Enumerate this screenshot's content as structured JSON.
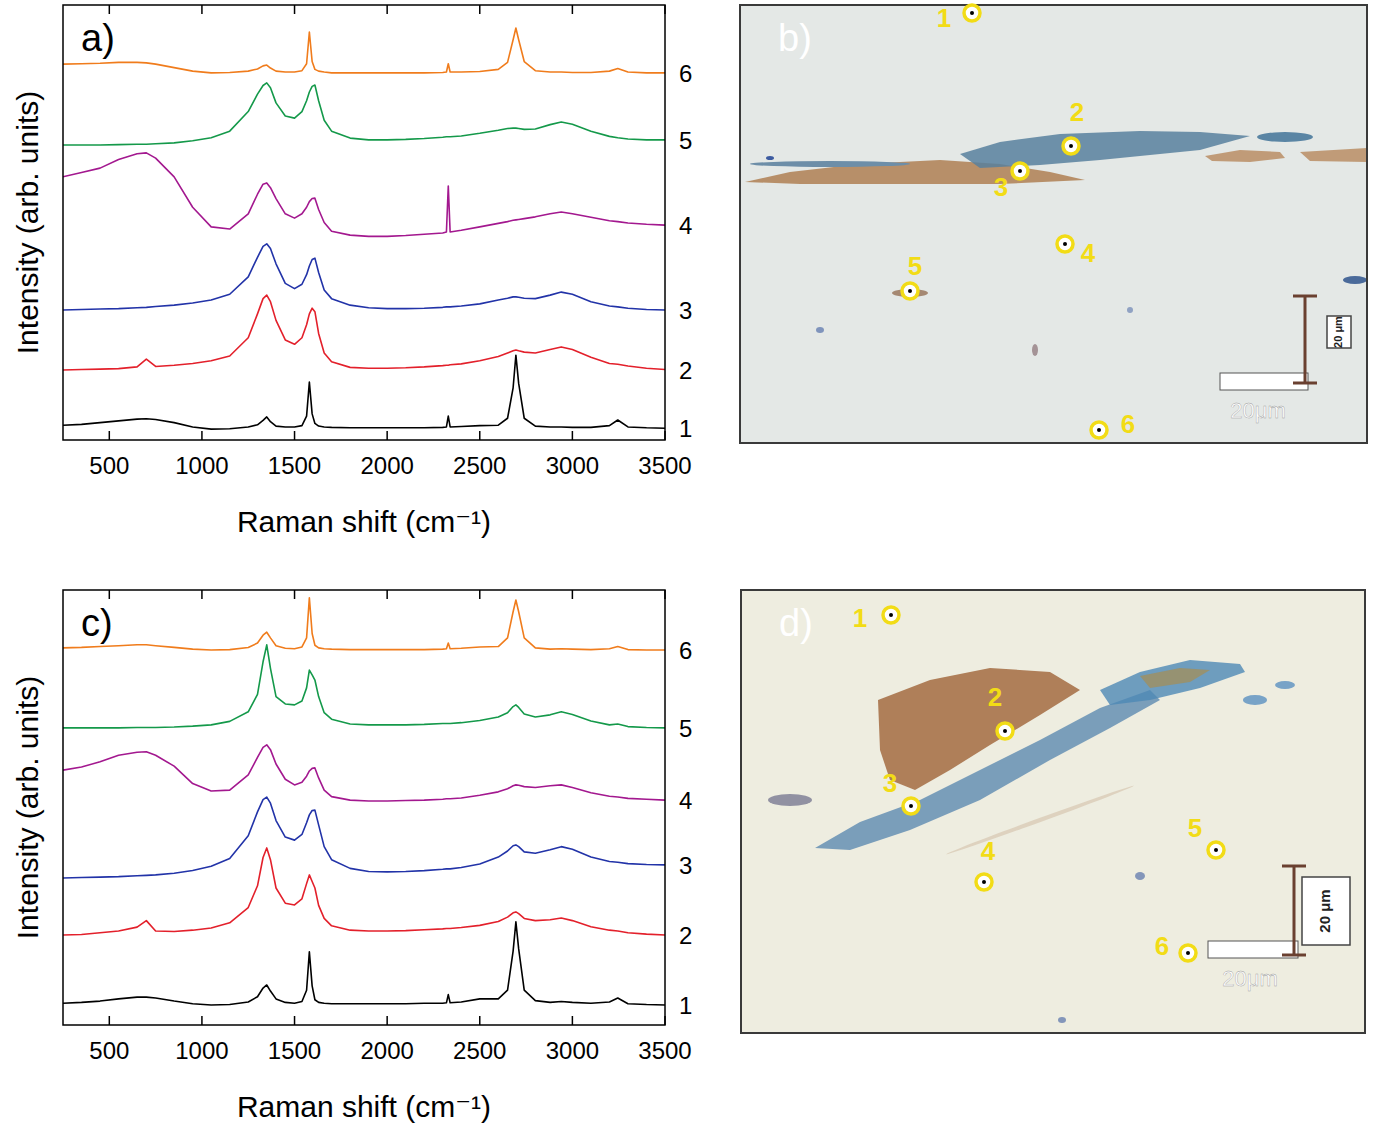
{
  "chart_data": [
    {
      "type": "line",
      "panel_label": "a)",
      "x_label": "Raman shift (cm⁻¹)",
      "y_label": "Intensity (arb. units)",
      "xlim": [
        250,
        3500
      ],
      "xticks": [
        500,
        1000,
        1500,
        2000,
        2500,
        3000,
        3500
      ],
      "ylim": [
        0,
        100
      ],
      "tick_labels": "x",
      "x": [
        250,
        350,
        450,
        550,
        650,
        700,
        750,
        850,
        950,
        1050,
        1150,
        1250,
        1300,
        1330,
        1350,
        1370,
        1400,
        1450,
        1500,
        1540,
        1565,
        1580,
        1595,
        1610,
        1630,
        1660,
        1700,
        1800,
        1900,
        2000,
        2100,
        2200,
        2300,
        2320,
        2330,
        2340,
        2400,
        2500,
        2600,
        2650,
        2680,
        2695,
        2710,
        2740,
        2800,
        2880,
        2940,
        3000,
        3100,
        3200,
        3245,
        3300,
        3400,
        3500
      ],
      "series": [
        {
          "name": "1",
          "color": "#000000",
          "values": [
            3.4,
            3.6,
            4.0,
            4.4,
            4.8,
            4.9,
            4.7,
            4.0,
            3.0,
            2.5,
            2.6,
            3.0,
            3.5,
            4.5,
            5.3,
            4.2,
            3.2,
            3.0,
            3.0,
            3.3,
            5.5,
            13.3,
            6.0,
            3.8,
            3.2,
            3.0,
            2.9,
            2.8,
            2.8,
            2.8,
            2.8,
            2.8,
            2.9,
            3.0,
            5.5,
            3.0,
            3.1,
            3.3,
            3.4,
            5.0,
            12.0,
            19.5,
            13.0,
            5.0,
            3.2,
            3.0,
            3.0,
            2.9,
            2.9,
            3.3,
            4.6,
            3.0,
            2.8,
            2.7
          ]
        },
        {
          "name": "2",
          "color": "#e3202b",
          "values": [
            16.1,
            16.2,
            16.3,
            16.4,
            16.8,
            18.6,
            16.9,
            17.2,
            17.6,
            18.2,
            19.3,
            23.5,
            29.0,
            32.5,
            33.3,
            31.8,
            27.5,
            23.0,
            22.0,
            23.5,
            26.5,
            29.0,
            30.3,
            29.5,
            24.5,
            20.0,
            18.0,
            16.7,
            16.5,
            16.5,
            16.6,
            16.8,
            17.1,
            17.2,
            17.2,
            17.3,
            17.5,
            18.2,
            19.2,
            20.0,
            20.5,
            20.7,
            20.5,
            20.2,
            20.0,
            20.8,
            21.4,
            20.8,
            19.0,
            17.6,
            17.4,
            17.0,
            16.5,
            16.2
          ]
        },
        {
          "name": "3",
          "color": "#2233a8",
          "values": [
            29.9,
            30.0,
            30.1,
            30.2,
            30.4,
            30.5,
            30.7,
            31.0,
            31.5,
            32.2,
            33.5,
            37.5,
            42.0,
            44.5,
            45.1,
            44.0,
            40.5,
            36.0,
            34.8,
            35.8,
            38.0,
            40.0,
            41.5,
            41.8,
            38.5,
            34.5,
            32.5,
            31.0,
            30.4,
            30.2,
            30.2,
            30.3,
            30.5,
            30.6,
            30.6,
            30.6,
            30.8,
            31.3,
            32.2,
            32.6,
            32.9,
            32.9,
            32.8,
            32.6,
            32.5,
            33.3,
            34.0,
            33.5,
            31.8,
            30.8,
            30.6,
            30.3,
            30.0,
            29.9
          ]
        },
        {
          "name": "4",
          "color": "#a3188f",
          "values": [
            60.5,
            61.5,
            62.5,
            64.5,
            65.8,
            66.0,
            64.8,
            60.5,
            53.5,
            49.0,
            48.5,
            52.0,
            56.5,
            58.8,
            59.1,
            58.0,
            55.5,
            52.0,
            51.0,
            52.0,
            53.5,
            54.8,
            55.5,
            55.6,
            53.0,
            50.0,
            48.0,
            47.1,
            46.8,
            46.8,
            47.0,
            47.3,
            47.6,
            47.8,
            58.4,
            47.8,
            48.2,
            49.0,
            49.8,
            50.2,
            50.5,
            50.6,
            50.7,
            50.9,
            51.3,
            52.0,
            52.4,
            52.0,
            51.2,
            50.4,
            50.2,
            49.9,
            49.6,
            49.4
          ]
        },
        {
          "name": "5",
          "color": "#14994a",
          "values": [
            67.8,
            67.8,
            67.8,
            67.9,
            68.0,
            68.0,
            68.1,
            68.3,
            68.8,
            69.5,
            71.0,
            75.5,
            79.5,
            81.5,
            82.1,
            81.0,
            77.5,
            74.5,
            74.0,
            75.5,
            78.0,
            80.0,
            81.3,
            81.6,
            78.0,
            73.5,
            71.0,
            69.4,
            69.0,
            69.0,
            69.1,
            69.3,
            69.6,
            69.7,
            69.7,
            69.7,
            69.9,
            70.5,
            71.2,
            71.6,
            71.7,
            71.7,
            71.6,
            71.4,
            71.5,
            72.5,
            73.1,
            72.6,
            71.0,
            69.8,
            69.5,
            69.2,
            69.0,
            69.0
          ]
        },
        {
          "name": "6",
          "color": "#f07c1c",
          "values": [
            86.4,
            86.5,
            86.6,
            86.8,
            86.8,
            86.7,
            86.4,
            85.6,
            84.8,
            84.4,
            84.5,
            84.8,
            85.3,
            86.0,
            86.2,
            85.5,
            84.8,
            84.6,
            84.6,
            84.9,
            86.5,
            93.8,
            87.0,
            85.2,
            84.8,
            84.6,
            84.4,
            84.4,
            84.4,
            84.4,
            84.4,
            84.4,
            84.5,
            84.6,
            86.5,
            84.6,
            84.6,
            84.7,
            85.2,
            86.8,
            92.0,
            94.7,
            92.0,
            87.0,
            84.9,
            84.6,
            84.6,
            84.5,
            84.5,
            84.8,
            85.4,
            84.6,
            84.4,
            84.4
          ]
        }
      ]
    },
    {
      "type": "line",
      "panel_label": "c)",
      "x_label": "Raman shift (cm⁻¹)",
      "y_label": "Intensity (arb. units)",
      "xlim": [
        250,
        3500
      ],
      "xticks": [
        500,
        1000,
        1500,
        2000,
        2500,
        3000,
        3500
      ],
      "ylim": [
        0,
        100
      ],
      "tick_labels": "x",
      "x": [
        250,
        350,
        450,
        550,
        650,
        700,
        750,
        850,
        950,
        1050,
        1150,
        1250,
        1300,
        1330,
        1350,
        1370,
        1400,
        1450,
        1500,
        1540,
        1565,
        1580,
        1595,
        1610,
        1630,
        1660,
        1700,
        1800,
        1900,
        2000,
        2100,
        2200,
        2300,
        2320,
        2330,
        2340,
        2400,
        2500,
        2600,
        2650,
        2680,
        2695,
        2710,
        2740,
        2800,
        2880,
        2940,
        3000,
        3100,
        3200,
        3245,
        3300,
        3400,
        3500
      ],
      "series": [
        {
          "name": "1",
          "color": "#000000",
          "values": [
            5.0,
            5.2,
            5.5,
            6.0,
            6.4,
            6.4,
            6.2,
            5.5,
            4.9,
            4.6,
            4.7,
            5.3,
            6.5,
            8.5,
            9.2,
            7.8,
            6.0,
            5.2,
            5.0,
            5.4,
            8.0,
            16.8,
            9.0,
            5.8,
            5.2,
            5.0,
            4.9,
            4.9,
            4.9,
            4.9,
            4.9,
            5.0,
            5.0,
            5.1,
            7.0,
            5.1,
            5.3,
            6.0,
            6.0,
            8.0,
            17.0,
            23.7,
            17.5,
            8.0,
            5.6,
            5.2,
            5.4,
            5.2,
            5.0,
            5.3,
            6.2,
            4.9,
            4.7,
            4.6
          ]
        },
        {
          "name": "2",
          "color": "#e3202b",
          "values": [
            20.7,
            20.8,
            21.2,
            21.6,
            22.5,
            24.0,
            21.6,
            21.5,
            21.8,
            22.3,
            23.5,
            27.0,
            32.0,
            38.5,
            40.7,
            38.0,
            31.5,
            28.0,
            27.6,
            29.0,
            32.5,
            34.5,
            33.0,
            31.5,
            27.5,
            24.5,
            22.8,
            21.8,
            21.6,
            21.6,
            21.7,
            21.9,
            22.1,
            22.2,
            22.2,
            22.2,
            22.4,
            22.9,
            23.8,
            24.8,
            25.8,
            26.0,
            25.6,
            24.5,
            24.0,
            24.2,
            24.6,
            24.0,
            22.6,
            21.8,
            21.6,
            21.2,
            20.9,
            20.7
          ]
        },
        {
          "name": "3",
          "color": "#2233a8",
          "values": [
            33.8,
            33.9,
            34.0,
            34.1,
            34.3,
            34.4,
            34.5,
            34.9,
            35.5,
            36.5,
            38.3,
            43.5,
            49.0,
            51.8,
            52.4,
            51.0,
            47.0,
            43.2,
            42.5,
            43.8,
            46.5,
            48.3,
            49.3,
            49.4,
            46.0,
            41.0,
            38.0,
            36.0,
            35.3,
            35.2,
            35.3,
            35.5,
            35.8,
            35.9,
            35.9,
            35.9,
            36.2,
            37.0,
            38.6,
            40.0,
            41.2,
            41.4,
            41.0,
            39.8,
            39.5,
            40.3,
            41.0,
            40.4,
            38.6,
            37.6,
            37.4,
            37.1,
            36.9,
            36.8
          ]
        },
        {
          "name": "4",
          "color": "#a3188f",
          "values": [
            58.6,
            59.3,
            60.5,
            62.0,
            62.7,
            62.8,
            62.0,
            59.5,
            55.5,
            53.8,
            54.0,
            57.5,
            61.5,
            63.8,
            64.4,
            63.3,
            60.0,
            56.5,
            55.2,
            55.8,
            57.2,
            58.4,
            59.0,
            59.1,
            56.8,
            54.0,
            52.5,
            51.7,
            51.5,
            51.5,
            51.6,
            51.7,
            51.9,
            52.0,
            52.0,
            52.0,
            52.2,
            52.8,
            53.6,
            54.3,
            55.0,
            55.2,
            55.1,
            54.8,
            54.6,
            55.0,
            55.2,
            54.6,
            53.4,
            52.6,
            52.4,
            52.1,
            51.9,
            51.7
          ]
        },
        {
          "name": "5",
          "color": "#14994a",
          "values": [
            68.3,
            68.3,
            68.3,
            68.3,
            68.4,
            68.4,
            68.4,
            68.5,
            68.7,
            69.0,
            69.8,
            72.0,
            76.0,
            83.5,
            87.4,
            82.0,
            75.5,
            73.8,
            73.6,
            74.5,
            77.5,
            81.6,
            80.5,
            79.3,
            75.5,
            71.8,
            70.3,
            69.2,
            69.0,
            69.0,
            69.0,
            69.1,
            69.3,
            69.3,
            69.3,
            69.3,
            69.5,
            70.0,
            70.8,
            71.8,
            73.2,
            73.6,
            73.0,
            71.5,
            70.8,
            71.3,
            72.0,
            71.4,
            69.9,
            69.0,
            69.2,
            68.6,
            68.4,
            68.3
          ]
        },
        {
          "name": "6",
          "color": "#f07c1c",
          "values": [
            86.7,
            86.8,
            87.0,
            87.2,
            87.4,
            87.4,
            87.2,
            86.8,
            86.4,
            86.2,
            86.3,
            86.8,
            87.8,
            89.6,
            90.3,
            89.0,
            87.2,
            86.6,
            86.5,
            86.9,
            89.0,
            98.2,
            90.0,
            87.3,
            86.7,
            86.5,
            86.4,
            86.3,
            86.3,
            86.3,
            86.3,
            86.3,
            86.4,
            86.5,
            87.8,
            86.5,
            86.6,
            86.9,
            87.0,
            89.0,
            95.0,
            97.7,
            95.0,
            89.0,
            86.7,
            86.4,
            86.5,
            86.4,
            86.3,
            86.5,
            87.0,
            86.3,
            86.2,
            86.2
          ]
        }
      ]
    }
  ],
  "micrographs": [
    {
      "panel_label": "b)",
      "points": [
        "1",
        "2",
        "3",
        "4",
        "5",
        "6"
      ],
      "scale_bar": "20μm",
      "scale_bar_vertical": "20 μm"
    },
    {
      "panel_label": "d)",
      "points": [
        "1",
        "2",
        "3",
        "4",
        "5",
        "6"
      ],
      "scale_bar": "20μm",
      "scale_bar_vertical": "20 μm"
    }
  ]
}
